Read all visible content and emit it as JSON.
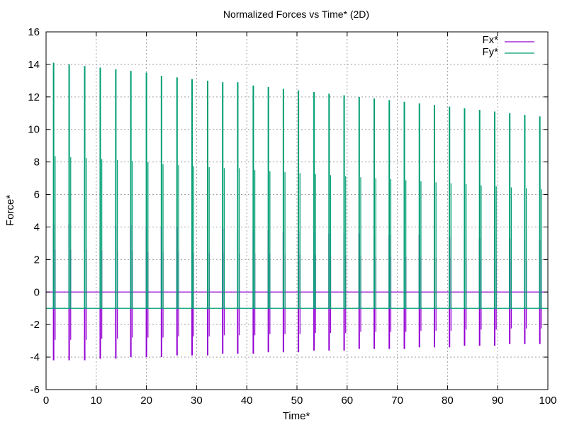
{
  "chart_data": {
    "type": "line",
    "title": "Normalized Forces vs Time* (2D)",
    "xlabel": "Time*",
    "ylabel": "Force*",
    "xlim": [
      0,
      100
    ],
    "ylim": [
      -6,
      16
    ],
    "xticks": [
      0,
      10,
      20,
      30,
      40,
      50,
      60,
      70,
      80,
      90,
      100
    ],
    "yticks": [
      -6,
      -4,
      -2,
      0,
      2,
      4,
      6,
      8,
      10,
      12,
      14,
      16
    ],
    "grid": true,
    "legend_position": "top-right",
    "series": [
      {
        "name": "Fx*",
        "color": "#9400d3",
        "baseline": 0,
        "spike_times": [
          1.5,
          4.6,
          7.7,
          10.8,
          13.9,
          16.9,
          20.0,
          23.0,
          26.1,
          29.1,
          32.2,
          35.2,
          38.2,
          41.3,
          44.3,
          47.3,
          50.3,
          53.4,
          56.4,
          59.4,
          62.4,
          65.4,
          68.4,
          71.4,
          74.4,
          77.4,
          80.4,
          83.4,
          86.4,
          89.4,
          92.4,
          95.4,
          98.4
        ],
        "spike_max": [
          4.2,
          4.2,
          4.2,
          4.1,
          4.1,
          4.1,
          4.0,
          4.0,
          4.0,
          3.9,
          3.9,
          3.9,
          3.8,
          3.8,
          3.8,
          3.7,
          3.7,
          3.7,
          3.6,
          3.6,
          3.6,
          3.5,
          3.5,
          3.5,
          3.5,
          3.4,
          3.4,
          3.4,
          3.3,
          3.3,
          3.3,
          3.2,
          3.2
        ],
        "spike_min": [
          -4.2,
          -4.2,
          -4.2,
          -4.1,
          -4.1,
          -4.0,
          -4.0,
          -4.0,
          -3.9,
          -3.9,
          -3.9,
          -3.8,
          -3.8,
          -3.8,
          -3.7,
          -3.7,
          -3.7,
          -3.6,
          -3.6,
          -3.6,
          -3.5,
          -3.5,
          -3.5,
          -3.5,
          -3.4,
          -3.4,
          -3.4,
          -3.3,
          -3.3,
          -3.3,
          -3.2,
          -3.2,
          -3.2
        ]
      },
      {
        "name": "Fy*",
        "color": "#009e73",
        "baseline": -1,
        "spike_times": [
          1.5,
          4.6,
          7.7,
          10.8,
          13.9,
          16.9,
          20.0,
          23.0,
          26.1,
          29.1,
          32.2,
          35.2,
          38.2,
          41.3,
          44.3,
          47.3,
          50.3,
          53.4,
          56.4,
          59.4,
          62.4,
          65.4,
          68.4,
          71.4,
          74.4,
          77.4,
          80.4,
          83.4,
          86.4,
          89.4,
          92.4,
          95.4,
          98.4
        ],
        "spike_max": [
          14.1,
          14.0,
          13.9,
          13.8,
          13.7,
          13.6,
          13.5,
          13.3,
          13.2,
          13.1,
          13.0,
          12.9,
          12.9,
          12.7,
          12.6,
          12.5,
          12.4,
          12.3,
          12.2,
          12.1,
          12.0,
          11.9,
          11.8,
          11.7,
          11.6,
          11.5,
          11.4,
          11.3,
          11.2,
          11.1,
          11.0,
          10.9,
          10.8
        ],
        "spike_min": [
          -1,
          -1,
          -1,
          -1,
          -1,
          -1,
          -1,
          -1,
          -1,
          -1,
          -1,
          -1,
          -1,
          -1,
          -1,
          -1,
          -1,
          -1,
          -1,
          -1,
          -1,
          -1,
          -1,
          -1,
          -1,
          -1,
          -1,
          -1,
          -1,
          -1,
          -1,
          -1,
          -1
        ]
      }
    ]
  }
}
